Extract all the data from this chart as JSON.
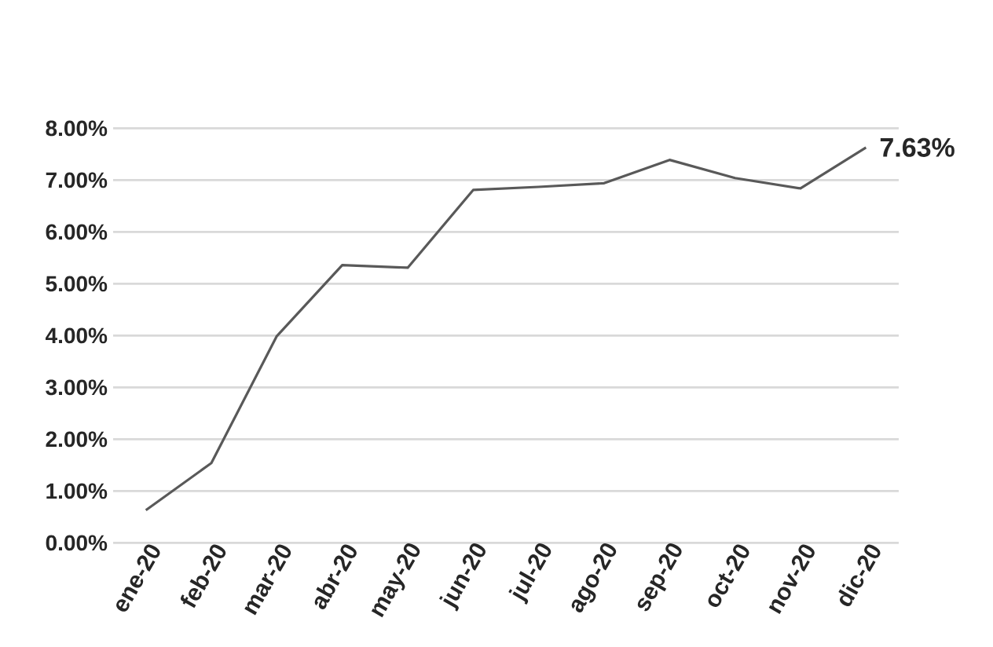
{
  "chart_data": {
    "type": "line",
    "categories": [
      "ene-20",
      "feb-20",
      "mar-20",
      "abr-20",
      "may-20",
      "jun-20",
      "jul-20",
      "ago-20",
      "sep-20",
      "oct-20",
      "nov-20",
      "dic-20"
    ],
    "values": [
      0.63,
      1.54,
      3.99,
      5.36,
      5.31,
      6.81,
      6.87,
      6.94,
      7.39,
      7.04,
      6.84,
      7.63
    ],
    "value_labels": [
      null,
      null,
      null,
      null,
      null,
      null,
      null,
      null,
      null,
      null,
      null,
      "7.63%"
    ],
    "color": "#595959",
    "ylim": [
      0,
      8
    ],
    "yticks": [
      {
        "value": 0,
        "label": "0.00%"
      },
      {
        "value": 1,
        "label": "1.00%"
      },
      {
        "value": 2,
        "label": "2.00%"
      },
      {
        "value": 3,
        "label": "3.00%"
      },
      {
        "value": 4,
        "label": "4.00%"
      },
      {
        "value": 5,
        "label": "5.00%"
      },
      {
        "value": 6,
        "label": "6.00%"
      },
      {
        "value": 7,
        "label": "7.00%"
      },
      {
        "value": 8,
        "label": "8.00%"
      }
    ],
    "grid": "y"
  }
}
